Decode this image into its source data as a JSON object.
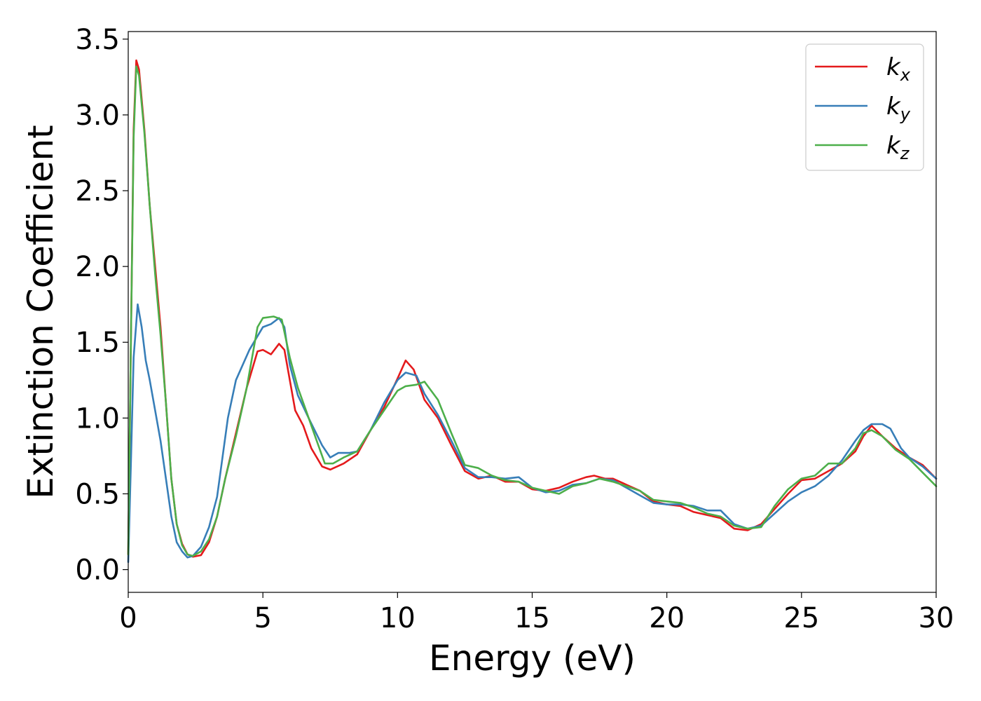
{
  "chart_data": {
    "type": "line",
    "xlabel": "Energy (eV)",
    "ylabel": "Extinction Coefficient",
    "xlim": [
      0,
      30
    ],
    "ylim": [
      -0.15,
      3.55
    ],
    "xticks": [
      0,
      5,
      10,
      15,
      20,
      25,
      30
    ],
    "xtick_labels": [
      "0",
      "5",
      "10",
      "15",
      "20",
      "25",
      "30"
    ],
    "yticks": [
      0.0,
      0.5,
      1.0,
      1.5,
      2.0,
      2.5,
      3.0,
      3.5
    ],
    "ytick_labels": [
      "0.0",
      "0.5",
      "1.0",
      "1.5",
      "2.0",
      "2.5",
      "3.0",
      "3.5"
    ],
    "grid": false,
    "legend_position": "top-right",
    "series": [
      {
        "name": "k",
        "subscript": "x",
        "color": "#e41a1c",
        "points": [
          [
            0,
            0.1
          ],
          [
            0.1,
            1.5
          ],
          [
            0.2,
            2.9
          ],
          [
            0.3,
            3.36
          ],
          [
            0.4,
            3.3
          ],
          [
            0.6,
            2.9
          ],
          [
            0.8,
            2.4
          ],
          [
            1,
            2.0
          ],
          [
            1.2,
            1.6
          ],
          [
            1.4,
            1.1
          ],
          [
            1.6,
            0.6
          ],
          [
            1.8,
            0.3
          ],
          [
            2,
            0.17
          ],
          [
            2.2,
            0.1
          ],
          [
            2.4,
            0.085
          ],
          [
            2.7,
            0.095
          ],
          [
            3,
            0.18
          ],
          [
            3.3,
            0.35
          ],
          [
            3.6,
            0.6
          ],
          [
            4,
            0.9
          ],
          [
            4.4,
            1.2
          ],
          [
            4.8,
            1.44
          ],
          [
            5,
            1.45
          ],
          [
            5.3,
            1.42
          ],
          [
            5.6,
            1.49
          ],
          [
            5.8,
            1.45
          ],
          [
            6,
            1.25
          ],
          [
            6.2,
            1.05
          ],
          [
            6.5,
            0.95
          ],
          [
            6.8,
            0.8
          ],
          [
            7.2,
            0.68
          ],
          [
            7.5,
            0.66
          ],
          [
            8,
            0.7
          ],
          [
            8.5,
            0.76
          ],
          [
            9,
            0.92
          ],
          [
            9.5,
            1.07
          ],
          [
            10,
            1.26
          ],
          [
            10.3,
            1.38
          ],
          [
            10.6,
            1.32
          ],
          [
            11,
            1.12
          ],
          [
            11.5,
            1.0
          ],
          [
            12,
            0.82
          ],
          [
            12.5,
            0.65
          ],
          [
            13,
            0.6
          ],
          [
            13.5,
            0.62
          ],
          [
            14,
            0.58
          ],
          [
            14.5,
            0.58
          ],
          [
            15,
            0.53
          ],
          [
            15.5,
            0.52
          ],
          [
            16,
            0.54
          ],
          [
            16.5,
            0.58
          ],
          [
            17,
            0.61
          ],
          [
            17.3,
            0.62
          ],
          [
            17.7,
            0.6
          ],
          [
            18,
            0.6
          ],
          [
            18.5,
            0.56
          ],
          [
            19,
            0.52
          ],
          [
            19.5,
            0.45
          ],
          [
            20,
            0.43
          ],
          [
            20.5,
            0.42
          ],
          [
            21,
            0.38
          ],
          [
            21.5,
            0.36
          ],
          [
            22,
            0.34
          ],
          [
            22.5,
            0.27
          ],
          [
            23,
            0.26
          ],
          [
            23.5,
            0.3
          ],
          [
            24,
            0.4
          ],
          [
            24.5,
            0.5
          ],
          [
            25,
            0.59
          ],
          [
            25.5,
            0.6
          ],
          [
            26,
            0.65
          ],
          [
            26.5,
            0.7
          ],
          [
            27,
            0.78
          ],
          [
            27.3,
            0.88
          ],
          [
            27.6,
            0.95
          ],
          [
            28,
            0.88
          ],
          [
            28.5,
            0.8
          ],
          [
            29,
            0.74
          ],
          [
            29.5,
            0.69
          ],
          [
            30,
            0.6
          ]
        ]
      },
      {
        "name": "k",
        "subscript": "y",
        "color": "#377eb8",
        "points": [
          [
            0,
            0.05
          ],
          [
            0.1,
            0.7
          ],
          [
            0.2,
            1.4
          ],
          [
            0.35,
            1.75
          ],
          [
            0.5,
            1.6
          ],
          [
            0.65,
            1.38
          ],
          [
            0.8,
            1.25
          ],
          [
            1,
            1.05
          ],
          [
            1.2,
            0.85
          ],
          [
            1.4,
            0.6
          ],
          [
            1.6,
            0.35
          ],
          [
            1.8,
            0.18
          ],
          [
            2,
            0.12
          ],
          [
            2.2,
            0.08
          ],
          [
            2.4,
            0.09
          ],
          [
            2.7,
            0.15
          ],
          [
            3,
            0.28
          ],
          [
            3.3,
            0.48
          ],
          [
            3.7,
            1.0
          ],
          [
            4,
            1.25
          ],
          [
            4.5,
            1.45
          ],
          [
            5,
            1.6
          ],
          [
            5.3,
            1.62
          ],
          [
            5.6,
            1.66
          ],
          [
            5.8,
            1.6
          ],
          [
            6,
            1.35
          ],
          [
            6.3,
            1.15
          ],
          [
            6.7,
            1.0
          ],
          [
            7.2,
            0.82
          ],
          [
            7.5,
            0.74
          ],
          [
            7.8,
            0.77
          ],
          [
            8.2,
            0.77
          ],
          [
            8.5,
            0.78
          ],
          [
            9,
            0.92
          ],
          [
            9.5,
            1.1
          ],
          [
            10,
            1.25
          ],
          [
            10.3,
            1.3
          ],
          [
            10.7,
            1.28
          ],
          [
            11,
            1.16
          ],
          [
            11.5,
            1.02
          ],
          [
            12,
            0.85
          ],
          [
            12.5,
            0.67
          ],
          [
            13,
            0.61
          ],
          [
            13.5,
            0.61
          ],
          [
            14,
            0.6
          ],
          [
            14.5,
            0.61
          ],
          [
            15,
            0.54
          ],
          [
            15.5,
            0.51
          ],
          [
            16,
            0.52
          ],
          [
            16.5,
            0.56
          ],
          [
            17,
            0.57
          ],
          [
            17.5,
            0.6
          ],
          [
            18,
            0.59
          ],
          [
            18.5,
            0.54
          ],
          [
            19,
            0.49
          ],
          [
            19.5,
            0.44
          ],
          [
            20,
            0.43
          ],
          [
            20.5,
            0.43
          ],
          [
            21,
            0.42
          ],
          [
            21.5,
            0.39
          ],
          [
            22,
            0.39
          ],
          [
            22.5,
            0.3
          ],
          [
            23,
            0.27
          ],
          [
            23.5,
            0.29
          ],
          [
            24,
            0.37
          ],
          [
            24.5,
            0.45
          ],
          [
            25,
            0.51
          ],
          [
            25.5,
            0.55
          ],
          [
            26,
            0.62
          ],
          [
            26.5,
            0.72
          ],
          [
            27,
            0.85
          ],
          [
            27.3,
            0.92
          ],
          [
            27.6,
            0.96
          ],
          [
            28,
            0.96
          ],
          [
            28.3,
            0.93
          ],
          [
            28.7,
            0.8
          ],
          [
            29,
            0.74
          ],
          [
            29.5,
            0.68
          ],
          [
            30,
            0.6
          ]
        ]
      },
      {
        "name": "k",
        "subscript": "z",
        "color": "#4daf4a",
        "points": [
          [
            0,
            0.1
          ],
          [
            0.1,
            1.5
          ],
          [
            0.2,
            2.85
          ],
          [
            0.3,
            3.32
          ],
          [
            0.4,
            3.26
          ],
          [
            0.6,
            2.88
          ],
          [
            0.8,
            2.4
          ],
          [
            1,
            1.95
          ],
          [
            1.2,
            1.55
          ],
          [
            1.4,
            1.1
          ],
          [
            1.6,
            0.6
          ],
          [
            1.8,
            0.3
          ],
          [
            2,
            0.16
          ],
          [
            2.2,
            0.1
          ],
          [
            2.4,
            0.09
          ],
          [
            2.7,
            0.12
          ],
          [
            3,
            0.2
          ],
          [
            3.3,
            0.35
          ],
          [
            3.6,
            0.6
          ],
          [
            4,
            0.88
          ],
          [
            4.4,
            1.2
          ],
          [
            4.8,
            1.6
          ],
          [
            5,
            1.66
          ],
          [
            5.4,
            1.67
          ],
          [
            5.7,
            1.65
          ],
          [
            6,
            1.4
          ],
          [
            6.3,
            1.2
          ],
          [
            6.6,
            1.05
          ],
          [
            7,
            0.85
          ],
          [
            7.3,
            0.7
          ],
          [
            7.6,
            0.7
          ],
          [
            8,
            0.74
          ],
          [
            8.5,
            0.78
          ],
          [
            9,
            0.92
          ],
          [
            9.5,
            1.05
          ],
          [
            10,
            1.18
          ],
          [
            10.3,
            1.21
          ],
          [
            10.7,
            1.22
          ],
          [
            11,
            1.24
          ],
          [
            11.5,
            1.12
          ],
          [
            12,
            0.9
          ],
          [
            12.5,
            0.69
          ],
          [
            13,
            0.67
          ],
          [
            13.5,
            0.62
          ],
          [
            14,
            0.59
          ],
          [
            14.5,
            0.58
          ],
          [
            15,
            0.54
          ],
          [
            15.5,
            0.52
          ],
          [
            16,
            0.5
          ],
          [
            16.5,
            0.55
          ],
          [
            17,
            0.57
          ],
          [
            17.5,
            0.6
          ],
          [
            18,
            0.58
          ],
          [
            18.5,
            0.55
          ],
          [
            19,
            0.52
          ],
          [
            19.5,
            0.46
          ],
          [
            20,
            0.45
          ],
          [
            20.5,
            0.44
          ],
          [
            21,
            0.41
          ],
          [
            21.5,
            0.37
          ],
          [
            22,
            0.35
          ],
          [
            22.5,
            0.29
          ],
          [
            23,
            0.27
          ],
          [
            23.5,
            0.28
          ],
          [
            24,
            0.42
          ],
          [
            24.5,
            0.53
          ],
          [
            25,
            0.6
          ],
          [
            25.5,
            0.62
          ],
          [
            26,
            0.7
          ],
          [
            26.5,
            0.7
          ],
          [
            27,
            0.8
          ],
          [
            27.3,
            0.9
          ],
          [
            27.6,
            0.92
          ],
          [
            28,
            0.88
          ],
          [
            28.5,
            0.79
          ],
          [
            29,
            0.73
          ],
          [
            29.5,
            0.64
          ],
          [
            30,
            0.55
          ]
        ]
      }
    ]
  }
}
